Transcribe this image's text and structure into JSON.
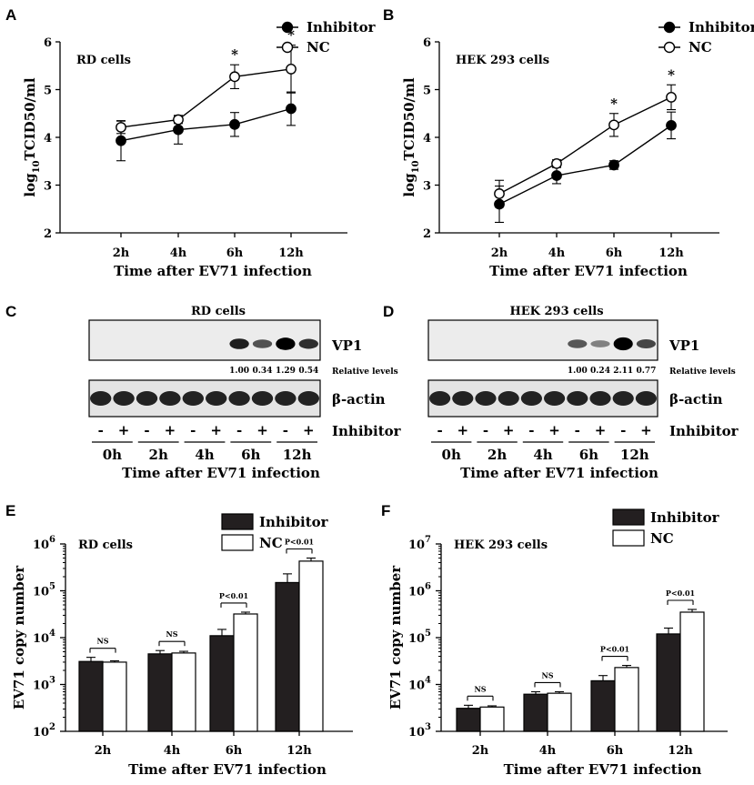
{
  "chart_data": [
    {
      "panel": "A",
      "type": "line",
      "title": "RD cells",
      "xlabel": "Time after EV71 infection",
      "ylabel": "log10TCID50/ml",
      "categories": [
        "2h",
        "4h",
        "6h",
        "12h"
      ],
      "ylim": [
        2,
        6
      ],
      "yticks": [
        "2",
        "3",
        "4",
        "5",
        "6"
      ],
      "series": [
        {
          "name": "Inhibitor",
          "marker": "filled",
          "values": [
            3.93,
            4.16,
            4.27,
            4.6
          ],
          "errors": [
            0.42,
            0.3,
            0.25,
            0.35
          ]
        },
        {
          "name": "NC",
          "marker": "open",
          "values": [
            4.21,
            4.37,
            5.27,
            5.43
          ],
          "errors": [
            0.13,
            0.08,
            0.25,
            0.5
          ]
        }
      ],
      "significance": [
        {
          "category": "6h",
          "label": "*"
        },
        {
          "category": "12h",
          "label": "*"
        }
      ]
    },
    {
      "panel": "B",
      "type": "line",
      "title": "HEK 293 cells",
      "xlabel": "Time after EV71 infection",
      "ylabel": "log10TCID50/ml",
      "categories": [
        "2h",
        "4h",
        "6h",
        "12h"
      ],
      "ylim": [
        2,
        6
      ],
      "yticks": [
        "2",
        "3",
        "4",
        "5",
        "6"
      ],
      "series": [
        {
          "name": "Inhibitor",
          "marker": "filled",
          "values": [
            2.6,
            3.2,
            3.42,
            4.25
          ],
          "errors": [
            0.38,
            0.17,
            0.09,
            0.28
          ]
        },
        {
          "name": "NC",
          "marker": "open",
          "values": [
            2.82,
            3.45,
            4.26,
            4.84
          ],
          "errors": [
            0.28,
            0.08,
            0.24,
            0.26
          ]
        }
      ],
      "significance": [
        {
          "category": "6h",
          "label": "*"
        },
        {
          "category": "12h",
          "label": "*"
        }
      ]
    },
    {
      "panel": "C",
      "type": "western_blot",
      "title": "RD cells",
      "bands": [
        "VP1",
        "β-actin"
      ],
      "lanes": [
        "-",
        "+",
        "-",
        "+",
        "-",
        "+",
        "-",
        "+",
        "-",
        "+"
      ],
      "lane_row_label": "Inhibitor",
      "timepoints": [
        "0h",
        "2h",
        "4h",
        "6h",
        "12h"
      ],
      "xlabel": "Time after EV71 infection",
      "relative_levels": [
        "1.00",
        "0.34",
        "1.29",
        "0.54"
      ],
      "relative_label": "Relative levels",
      "vp1_intensity": [
        0.02,
        0.02,
        0.02,
        0.02,
        0.02,
        0.02,
        0.62,
        0.4,
        0.85,
        0.55
      ]
    },
    {
      "panel": "D",
      "type": "western_blot",
      "title": "HEK 293 cells",
      "bands": [
        "VP1",
        "β-actin"
      ],
      "lanes": [
        "-",
        "+",
        "-",
        "+",
        "-",
        "+",
        "-",
        "+",
        "-",
        "+"
      ],
      "lane_row_label": "Inhibitor",
      "timepoints": [
        "0h",
        "2h",
        "4h",
        "6h",
        "12h"
      ],
      "xlabel": "Time after EV71 infection",
      "relative_levels": [
        "1.00",
        "0.24",
        "2.11",
        "0.77"
      ],
      "relative_label": "Relative levels",
      "vp1_intensity": [
        0.0,
        0.0,
        0.0,
        0.0,
        0.0,
        0.0,
        0.38,
        0.2,
        0.92,
        0.45
      ]
    },
    {
      "panel": "E",
      "type": "bar",
      "title": "RD cells",
      "xlabel": "Time after EV71 infection",
      "ylabel": "EV71 copy number",
      "yscale": "log",
      "ylim": [
        100,
        1000000
      ],
      "yticks": [
        {
          "base": "10",
          "exp": "2"
        },
        {
          "base": "10",
          "exp": "3"
        },
        {
          "base": "10",
          "exp": "4"
        },
        {
          "base": "10",
          "exp": "5"
        },
        {
          "base": "10",
          "exp": "6"
        }
      ],
      "categories": [
        "2h",
        "4h",
        "6h",
        "12h"
      ],
      "series": [
        {
          "name": "Inhibitor",
          "color": "#231f20",
          "values": [
            3100,
            4500,
            11000,
            150000
          ],
          "errors": [
            700,
            800,
            4000,
            80000
          ]
        },
        {
          "name": "NC",
          "color": "#ffffff",
          "values": [
            3000,
            4700,
            32000,
            430000
          ],
          "errors": [
            200,
            400,
            3000,
            70000
          ]
        }
      ],
      "comparisons": [
        "NS",
        "NS",
        "P<0.01",
        "P<0.01"
      ]
    },
    {
      "panel": "F",
      "type": "bar",
      "title": "HEK 293 cells",
      "xlabel": "Time after EV71 infection",
      "ylabel": "EV71 copy number",
      "yscale": "log",
      "ylim": [
        1000,
        10000000
      ],
      "yticks": [
        {
          "base": "10",
          "exp": "3"
        },
        {
          "base": "10",
          "exp": "4"
        },
        {
          "base": "10",
          "exp": "5"
        },
        {
          "base": "10",
          "exp": "6"
        },
        {
          "base": "10",
          "exp": "7"
        }
      ],
      "categories": [
        "2h",
        "4h",
        "6h",
        "12h"
      ],
      "series": [
        {
          "name": "Inhibitor",
          "color": "#231f20",
          "values": [
            3100,
            6200,
            12000,
            120000
          ],
          "errors": [
            500,
            800,
            3500,
            40000
          ]
        },
        {
          "name": "NC",
          "color": "#ffffff",
          "values": [
            3300,
            6500,
            23000,
            350000
          ],
          "errors": [
            200,
            500,
            2500,
            50000
          ]
        }
      ],
      "comparisons": [
        "NS",
        "NS",
        "P<0.01",
        "P<0.01"
      ]
    }
  ]
}
